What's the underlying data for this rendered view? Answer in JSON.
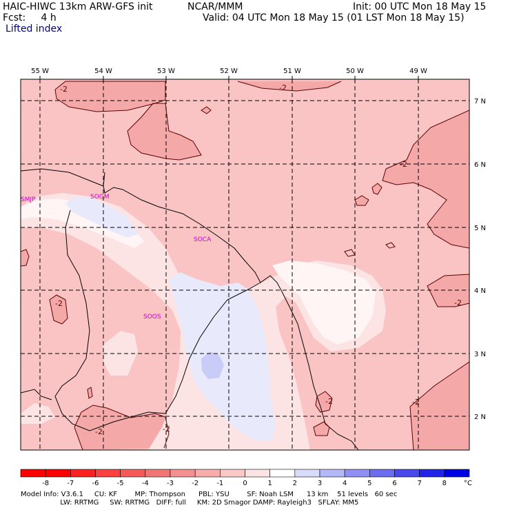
{
  "header": {
    "model": "HAIC-HIWC 13km ARW-GFS init",
    "org": "NCAR/MMM",
    "init": "Init: 00 UTC Mon 18 May 15",
    "fcst": "Fcst:     4 h",
    "valid": "Valid: 04 UTC Mon 18 May 15 (01 LST Mon 18 May 15)",
    "field": "Lifted index"
  },
  "map": {
    "lon_labels": [
      "55 W",
      "54 W",
      "53 W",
      "52 W",
      "51 W",
      "50 W",
      "49 W"
    ],
    "lat_labels": [
      "7 N",
      "6 N",
      "5 N",
      "4 N",
      "3 N",
      "2 N"
    ],
    "stations": [
      "SMJP",
      "SOGM",
      "SOCA",
      "SOOS"
    ],
    "contour_labels": [
      "-2",
      "-2",
      "-2",
      "-2",
      "-2",
      "-2",
      "-2",
      "-2",
      "-2"
    ],
    "colors": {
      "pink_dark": "#f5a8a8",
      "pink_mid": "#fac4c4",
      "pink_light": "#fde4e4",
      "near_white": "#fff5f5",
      "lavender": "#e8eafc",
      "blue_light": "#c8ccf6"
    }
  },
  "colorbar": {
    "ticks": [
      "-8",
      "-7",
      "-6",
      "-5",
      "-4",
      "-3",
      "-2",
      "-1",
      "0",
      "1",
      "2",
      "3",
      "4",
      "5",
      "6",
      "7",
      "8"
    ],
    "unit": "°C",
    "colors": [
      "#ff0000",
      "#ff2020",
      "#ff4040",
      "#f55a5a",
      "#f27474",
      "#f59090",
      "#f8acac",
      "#fbc8c8",
      "#fde4e4",
      "#ffffff",
      "#d8dcfa",
      "#b4b8f8",
      "#9090f4",
      "#6c6cf0",
      "#4848ec",
      "#2424e8",
      "#0000e4"
    ]
  },
  "footer": {
    "line1": "Model Info: V3.6.1     CU: KF        MP: Thompson      PBL: YSU        SF: Noah LSM      13 km    51 levels   60 sec",
    "line2": "                  LW: RRTMG     SW: RRTMG   DIFF: full     KM: 2D Smagor DAMP: Rayleigh3   SFLAY: MM5"
  }
}
